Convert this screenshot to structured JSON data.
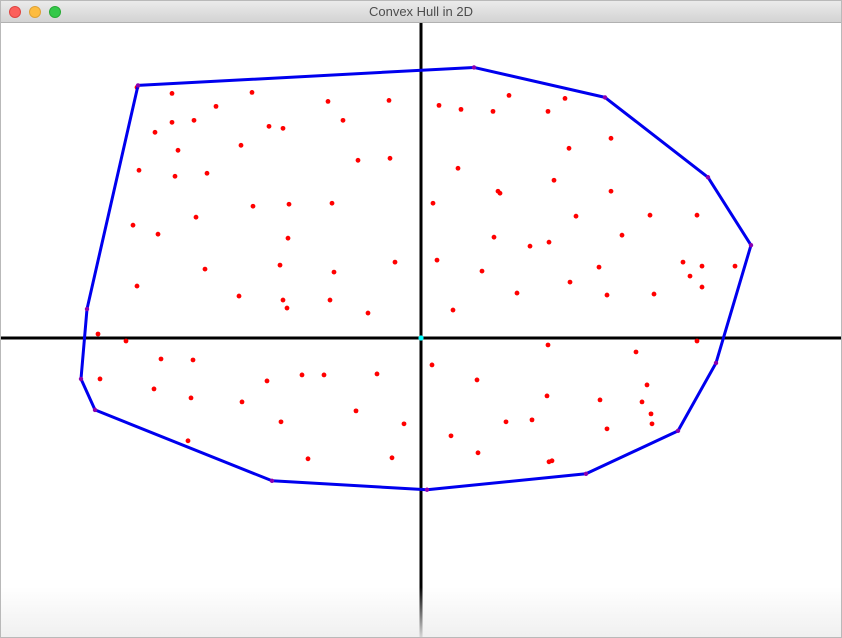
{
  "window": {
    "title": "Convex Hull in 2D"
  },
  "colors": {
    "point": "#ff0000",
    "hull": "#0000ee",
    "hull_vertex": "#8b00b0",
    "axes": "#000000",
    "origin": "#00ffff"
  },
  "chart_data": {
    "type": "scatter",
    "xlim": [
      -420,
      420
    ],
    "ylim": [
      -300,
      315
    ],
    "axes_visible": true,
    "grid": false,
    "points": [
      [
        -284,
        251
      ],
      [
        -249,
        245
      ],
      [
        -205,
        232
      ],
      [
        -169,
        246
      ],
      [
        -266,
        206
      ],
      [
        -249,
        216
      ],
      [
        -227,
        218
      ],
      [
        -243,
        188
      ],
      [
        -180,
        193
      ],
      [
        -93,
        237
      ],
      [
        -152,
        212
      ],
      [
        -138,
        210
      ],
      [
        -78,
        218
      ],
      [
        -32,
        238
      ],
      [
        -63,
        178
      ],
      [
        -31,
        180
      ],
      [
        -282,
        168
      ],
      [
        -246,
        162
      ],
      [
        -214,
        165
      ],
      [
        -168,
        132
      ],
      [
        -132,
        134
      ],
      [
        -89,
        135
      ],
      [
        -225,
        121
      ],
      [
        -288,
        113
      ],
      [
        -263,
        104
      ],
      [
        -133,
        100
      ],
      [
        -216,
        69
      ],
      [
        -141,
        73
      ],
      [
        -87,
        66
      ],
      [
        -26,
        76
      ],
      [
        -284,
        52
      ],
      [
        -182,
        42
      ],
      [
        -138,
        38
      ],
      [
        -134,
        30
      ],
      [
        -91,
        38
      ],
      [
        -53,
        25
      ],
      [
        -323,
        4
      ],
      [
        -295,
        -3
      ],
      [
        -260,
        -21
      ],
      [
        -228,
        -22
      ],
      [
        -321,
        -41
      ],
      [
        -267,
        -51
      ],
      [
        -230,
        -60
      ],
      [
        -179,
        -64
      ],
      [
        -154,
        -43
      ],
      [
        -119,
        -37
      ],
      [
        -97,
        -37
      ],
      [
        -44,
        -36
      ],
      [
        -65,
        -73
      ],
      [
        -140,
        -84
      ],
      [
        -17,
        -86
      ],
      [
        -233,
        -103
      ],
      [
        -113,
        -121
      ],
      [
        -29,
        -120
      ],
      [
        18,
        233
      ],
      [
        40,
        229
      ],
      [
        72,
        227
      ],
      [
        88,
        243
      ],
      [
        127,
        227
      ],
      [
        144,
        240
      ],
      [
        148,
        190
      ],
      [
        190,
        200
      ],
      [
        37,
        170
      ],
      [
        77,
        147
      ],
      [
        79,
        145
      ],
      [
        133,
        158
      ],
      [
        12,
        135
      ],
      [
        155,
        122
      ],
      [
        190,
        147
      ],
      [
        229,
        123
      ],
      [
        276,
        123
      ],
      [
        73,
        101
      ],
      [
        109,
        92
      ],
      [
        128,
        96
      ],
      [
        201,
        103
      ],
      [
        178,
        71
      ],
      [
        262,
        76
      ],
      [
        269,
        62
      ],
      [
        281,
        72
      ],
      [
        314,
        72
      ],
      [
        16,
        78
      ],
      [
        61,
        67
      ],
      [
        96,
        45
      ],
      [
        149,
        56
      ],
      [
        186,
        43
      ],
      [
        233,
        44
      ],
      [
        281,
        51
      ],
      [
        32,
        28
      ],
      [
        127,
        -7
      ],
      [
        215,
        -14
      ],
      [
        11,
        -27
      ],
      [
        56,
        -42
      ],
      [
        226,
        -47
      ],
      [
        126,
        -58
      ],
      [
        179,
        -62
      ],
      [
        221,
        -64
      ],
      [
        231,
        -86
      ],
      [
        186,
        -91
      ],
      [
        111,
        -82
      ],
      [
        85,
        -84
      ],
      [
        230,
        -76
      ],
      [
        30,
        -98
      ],
      [
        57,
        -115
      ],
      [
        128,
        -124
      ],
      [
        131,
        -123
      ],
      [
        276,
        -3
      ]
    ],
    "hull": [
      [
        53,
        271
      ],
      [
        184,
        241
      ],
      [
        287,
        161
      ],
      [
        330,
        93
      ],
      [
        295,
        -25
      ],
      [
        257,
        -93
      ],
      [
        165,
        -136
      ],
      [
        6,
        -152
      ],
      [
        -149,
        -143
      ],
      [
        -326,
        -72
      ],
      [
        -340,
        -41
      ],
      [
        -334,
        29
      ],
      [
        -283,
        253
      ]
    ]
  }
}
